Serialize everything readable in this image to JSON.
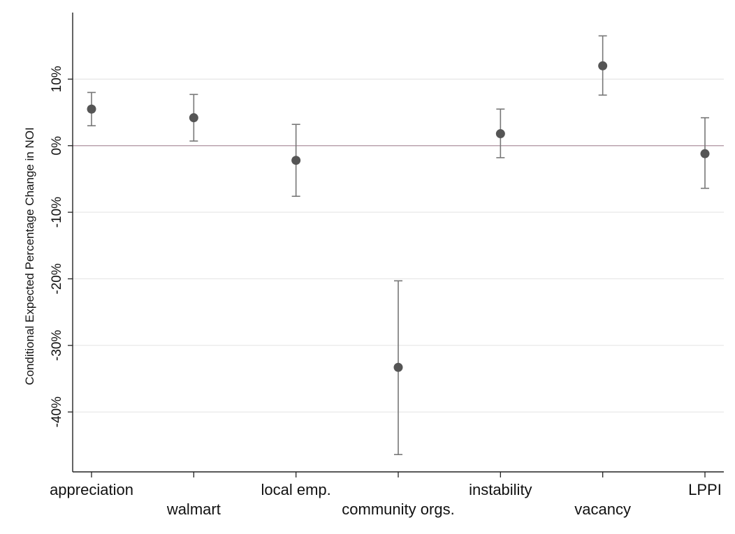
{
  "chart_data": {
    "type": "scatter",
    "style": "point estimates with error bars",
    "xlabel": "",
    "ylabel": "Conditional Expected Percentage Change in NOI",
    "ylim": [
      -49,
      20
    ],
    "yticks": [
      10,
      0,
      -10,
      -20,
      -30,
      -40
    ],
    "ytick_labels": [
      "10%",
      "0%",
      "-10%",
      "-20%",
      "-30%",
      "-40%"
    ],
    "grid": true,
    "reference_line_y": 0,
    "categories": [
      "appreciation",
      "walmart",
      "local emp.",
      "community orgs.",
      "instability",
      "vacancy",
      "LPPI"
    ],
    "label_rows": [
      0,
      1,
      0,
      1,
      0,
      1,
      0
    ],
    "values": [
      5.5,
      4.2,
      -2.2,
      -33.3,
      1.8,
      12.0,
      -1.2
    ],
    "ci_low": [
      3.0,
      0.7,
      -7.6,
      -46.4,
      -1.8,
      7.6,
      -6.4
    ],
    "ci_high": [
      8.0,
      7.7,
      3.2,
      -20.3,
      5.5,
      16.5,
      4.2
    ],
    "colors": {
      "point": "#555555",
      "error_bar": "#777777",
      "zero_line": "#b59ca8",
      "grid": "#e6e6e6",
      "axis": "#222222"
    }
  }
}
